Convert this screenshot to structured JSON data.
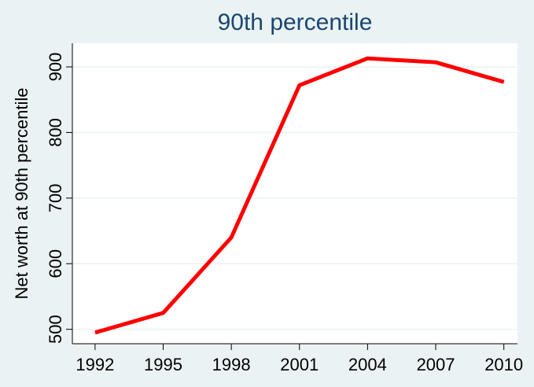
{
  "chart_data": {
    "type": "line",
    "title": "90th percentile",
    "y_label": "Net worth at 90th percentile",
    "x": [
      1992,
      1995,
      1998,
      2001,
      2004,
      2007,
      2010
    ],
    "series": [
      {
        "name": "Net worth",
        "color": "#ff0000",
        "values": [
          495,
          525,
          640,
          872,
          913,
          907,
          877
        ]
      }
    ],
    "xlim": [
      1991,
      2010.6
    ],
    "xticks": [
      1992,
      1995,
      1998,
      2001,
      2004,
      2007,
      2010
    ],
    "ylim": [
      478,
      936
    ],
    "yticks": [
      500,
      600,
      700,
      800,
      900
    ],
    "grid": true
  }
}
